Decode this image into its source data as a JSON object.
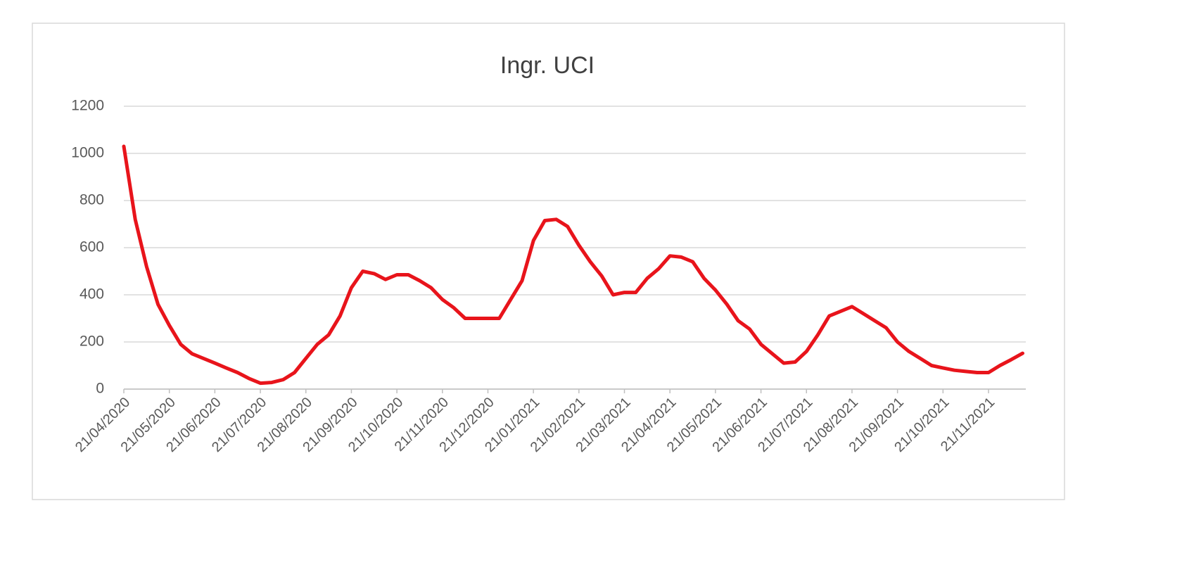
{
  "chart_data": {
    "type": "line",
    "title": "Ingr. UCI",
    "categories": [
      "21/04/2020",
      null,
      null,
      null,
      "21/05/2020",
      null,
      null,
      null,
      "21/06/2020",
      null,
      null,
      null,
      "21/07/2020",
      null,
      null,
      null,
      "21/08/2020",
      null,
      null,
      null,
      "21/09/2020",
      null,
      null,
      null,
      "21/10/2020",
      null,
      null,
      null,
      "21/11/2020",
      null,
      null,
      null,
      "21/12/2020",
      null,
      null,
      null,
      "21/01/2021",
      null,
      null,
      null,
      "21/02/2021",
      null,
      null,
      null,
      "21/03/2021",
      null,
      null,
      null,
      "21/04/2021",
      null,
      null,
      null,
      "21/05/2021",
      null,
      null,
      null,
      "21/06/2021",
      null,
      null,
      null,
      "21/07/2021",
      null,
      null,
      null,
      "21/08/2021",
      null,
      null,
      null,
      "21/09/2021",
      null,
      null,
      null,
      "21/10/2021",
      null,
      null,
      null,
      "21/11/2021",
      null,
      null,
      null
    ],
    "series": [
      {
        "name": "Ingr. UCI",
        "color": "#e8141b",
        "values": [
          1030,
          720,
          520,
          360,
          270,
          190,
          150,
          130,
          110,
          90,
          70,
          45,
          25,
          28,
          40,
          70,
          130,
          190,
          230,
          310,
          430,
          500,
          490,
          465,
          485,
          485,
          460,
          430,
          380,
          345,
          300,
          300,
          300,
          300,
          380,
          460,
          630,
          715,
          720,
          690,
          610,
          540,
          480,
          400,
          410,
          410,
          470,
          510,
          565,
          560,
          540,
          470,
          420,
          360,
          290,
          255,
          190,
          150,
          110,
          115,
          160,
          230,
          310,
          330,
          350,
          320,
          290,
          260,
          200,
          160,
          130,
          100,
          90,
          80,
          75,
          70,
          70,
          100,
          125,
          152
        ]
      }
    ],
    "ylim": [
      0,
      1200
    ],
    "yticks": [
      0,
      200,
      400,
      600,
      800,
      1000,
      1200
    ],
    "grid": true
  }
}
